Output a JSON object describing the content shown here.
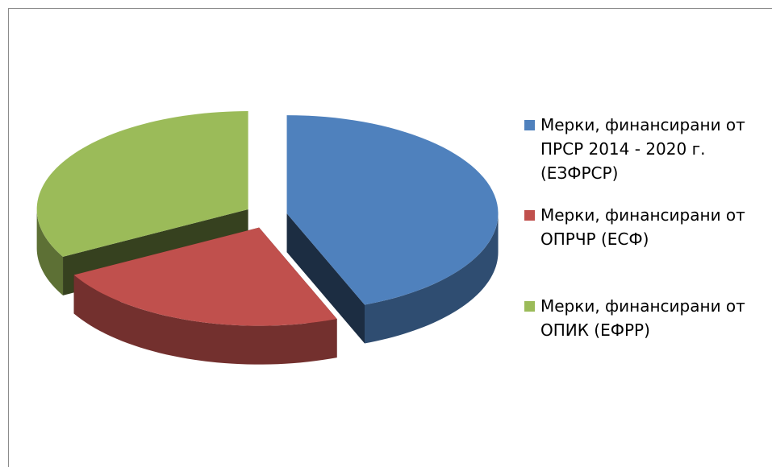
{
  "chart_data": {
    "type": "pie",
    "categories": [
      "Мерки, финансирани от ПРСР 2014 - 2020 г. (ЕЗФРСР)",
      "Мерки, финансирани от ОПРЧР (ЕСФ)",
      "Мерки, финансирани от ОПИК (ЕФРР)"
    ],
    "values": [
      44,
      23,
      33
    ],
    "colors": [
      "#4f81bd",
      "#c0504d",
      "#9bbb59"
    ],
    "legend": "right"
  }
}
